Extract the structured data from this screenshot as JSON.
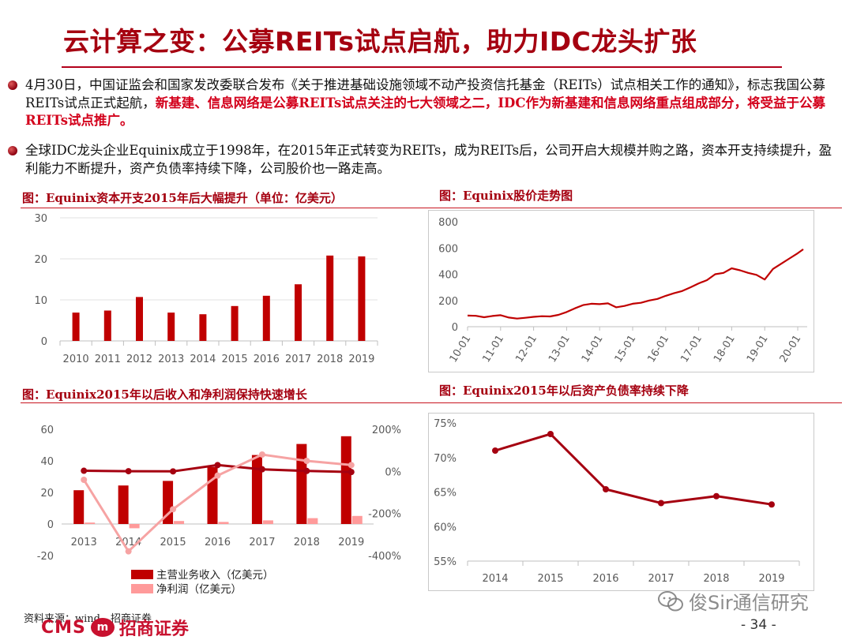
{
  "title": "云计算之变：公募REITs试点启航，助力IDC龙头扩张",
  "bullets": [
    {
      "text": "4月30日，中国证监会和国家发改委联合发布《关于推进基础设施领域不动产投资信托基金（REITs）试点相关工作的通知》，标志我国公募REITs试点正式起航，",
      "highlight": "新基建、信息网络是公募REITs试点关注的七大领域之二，IDC作为新基建和信息网络重点组成部分，将受益于公募REITs试点推广。"
    },
    {
      "text": "全球IDC龙头企业Equinix成立于1998年，在2015年正式转变为REITs，成为REITs后，公司开启大规模并购之路，资本开支持续提升，盈利能力不断提升，资产负债率持续下降，公司股价也一路走高。",
      "highlight": ""
    }
  ],
  "figures": {
    "capex": {
      "title": "图：Equinix资本开支2015年后大幅提升（单位：亿美元）"
    },
    "stock": {
      "title": "图：Equinix股价走势图"
    },
    "revenue": {
      "title": "图：Equinix2015年以后收入和净利润保持快速增长"
    },
    "debt": {
      "title": "图：Equinix2015年以后资产负债率持续下降"
    }
  },
  "chart_data": [
    {
      "id": "capex",
      "type": "bar",
      "categories": [
        "2010",
        "2011",
        "2012",
        "2013",
        "2014",
        "2015",
        "2016",
        "2017",
        "2018",
        "2019"
      ],
      "values": [
        6.9,
        7.4,
        10.7,
        6.9,
        6.5,
        8.5,
        11.0,
        13.8,
        20.8,
        20.6
      ],
      "ylim": [
        0,
        30
      ],
      "yticks": [
        "0",
        "10",
        "20",
        "30"
      ],
      "color": "#c00000"
    },
    {
      "id": "stock",
      "type": "line",
      "xticks": [
        "10-01",
        "11-01",
        "12-01",
        "13-01",
        "14-01",
        "15-01",
        "16-01",
        "17-01",
        "18-01",
        "19-01",
        "20-01"
      ],
      "yticks": [
        "0",
        "200",
        "400",
        "600",
        "800"
      ],
      "ylim": [
        0,
        800
      ],
      "points": [
        [
          "10-01",
          85
        ],
        [
          "10-04",
          83
        ],
        [
          "10-07",
          72
        ],
        [
          "10-10",
          82
        ],
        [
          "11-01",
          88
        ],
        [
          "11-04",
          70
        ],
        [
          "11-07",
          62
        ],
        [
          "11-10",
          68
        ],
        [
          "12-01",
          75
        ],
        [
          "12-04",
          80
        ],
        [
          "12-07",
          78
        ],
        [
          "12-10",
          90
        ],
        [
          "13-01",
          112
        ],
        [
          "13-04",
          140
        ],
        [
          "13-07",
          165
        ],
        [
          "13-10",
          175
        ],
        [
          "14-01",
          172
        ],
        [
          "14-04",
          178
        ],
        [
          "14-07",
          148
        ],
        [
          "14-10",
          158
        ],
        [
          "15-01",
          175
        ],
        [
          "15-04",
          182
        ],
        [
          "15-07",
          200
        ],
        [
          "15-10",
          212
        ],
        [
          "16-01",
          235
        ],
        [
          "16-04",
          255
        ],
        [
          "16-07",
          272
        ],
        [
          "16-10",
          300
        ],
        [
          "17-01",
          330
        ],
        [
          "17-04",
          355
        ],
        [
          "17-07",
          400
        ],
        [
          "17-10",
          410
        ],
        [
          "18-01",
          445
        ],
        [
          "18-04",
          430
        ],
        [
          "18-07",
          410
        ],
        [
          "18-10",
          395
        ],
        [
          "19-01",
          360
        ],
        [
          "19-04",
          440
        ],
        [
          "19-07",
          480
        ],
        [
          "19-10",
          520
        ],
        [
          "20-01",
          560
        ],
        [
          "20-03",
          590
        ]
      ],
      "color": "#c00000"
    },
    {
      "id": "revenue",
      "type": "bar",
      "categories": [
        "2013",
        "2014",
        "2015",
        "2016",
        "2017",
        "2018",
        "2019"
      ],
      "series": [
        {
          "name": "主营业务收入（亿美元）",
          "values": [
            21.4,
            24.4,
            27.3,
            36.1,
            43.7,
            50.7,
            55.6
          ],
          "color": "#c00000",
          "axis": "left"
        },
        {
          "name": "净利润（亿美元）",
          "values": [
            0.9,
            -2.7,
            1.9,
            1.3,
            2.3,
            3.7,
            5.1
          ],
          "color": "#ff9a9a",
          "axis": "left"
        },
        {
          "name": "",
          "values": [
            3,
            1,
            0,
            30,
            10,
            2,
            -3
          ],
          "type": "line",
          "color": "#a50010",
          "axis": "right"
        },
        {
          "name": "",
          "values": [
            -40,
            -380,
            -180,
            -20,
            80,
            50,
            30
          ],
          "type": "line",
          "color": "#f6a3a3",
          "axis": "right"
        }
      ],
      "ylim": [
        -20,
        60
      ],
      "yticks": [
        "-20",
        "0",
        "20",
        "40",
        "60"
      ],
      "y2lim": [
        -400,
        200
      ],
      "y2ticks": [
        "-400%",
        "-200%",
        "0%",
        "200%"
      ]
    },
    {
      "id": "debt",
      "type": "line",
      "categories": [
        "2014",
        "2015",
        "2016",
        "2017",
        "2018",
        "2019"
      ],
      "values": [
        71.0,
        73.4,
        65.4,
        63.4,
        64.4,
        63.2
      ],
      "ylim": [
        55,
        75
      ],
      "yticks": [
        "55%",
        "60%",
        "65%",
        "70%",
        "75%"
      ],
      "color": "#a50010"
    }
  ],
  "source": "资料来源：wind，招商证券",
  "logo": {
    "latin": "CMS",
    "badge": "m",
    "chinese": "招商证券"
  },
  "watermark": "俊Sir通信研究",
  "page_number": "- 34 -"
}
